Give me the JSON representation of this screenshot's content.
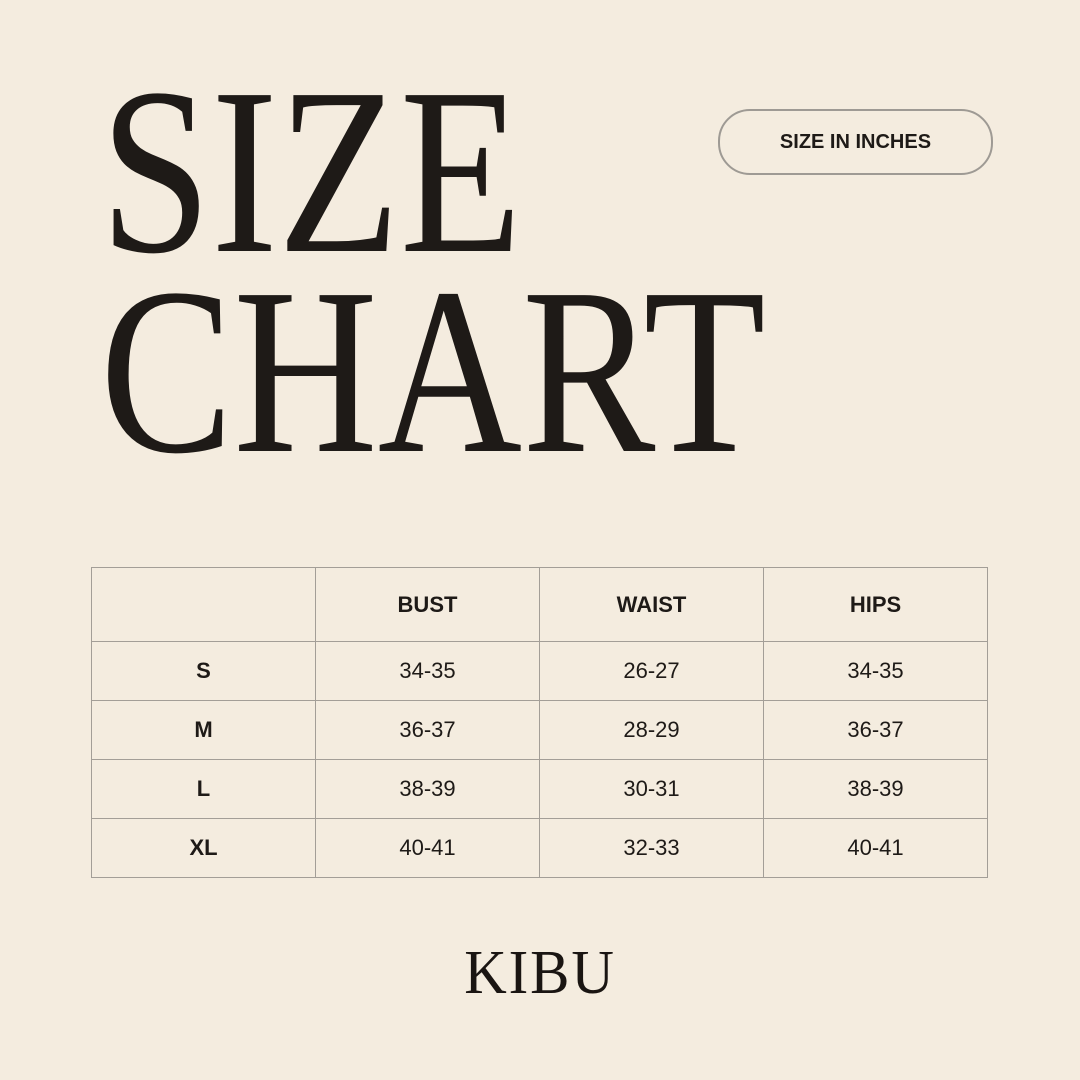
{
  "title": {
    "line1": "SIZE",
    "line2": "CHART"
  },
  "unit_badge": "SIZE IN INCHES",
  "table": {
    "headers": [
      "",
      "BUST",
      "WAIST",
      "HIPS"
    ],
    "rows": [
      {
        "size": "S",
        "bust": "34-35",
        "waist": "26-27",
        "hips": "34-35"
      },
      {
        "size": "M",
        "bust": "36-37",
        "waist": "28-29",
        "hips": "36-37"
      },
      {
        "size": "L",
        "bust": "38-39",
        "waist": "30-31",
        "hips": "38-39"
      },
      {
        "size": "XL",
        "bust": "40-41",
        "waist": "32-33",
        "hips": "40-41"
      }
    ]
  },
  "brand": "KIBU",
  "colors": {
    "background": "#f4ecdf",
    "text": "#1e1a17",
    "border": "#a39e97"
  }
}
